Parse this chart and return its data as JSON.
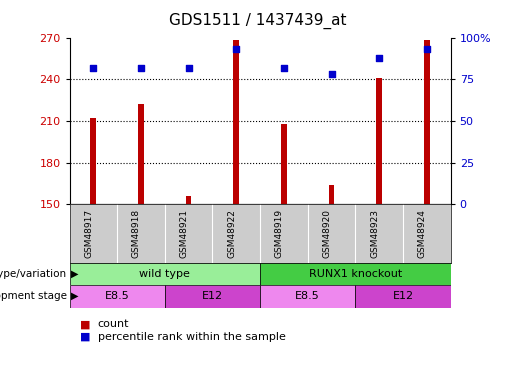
{
  "title": "GDS1511 / 1437439_at",
  "samples": [
    "GSM48917",
    "GSM48918",
    "GSM48921",
    "GSM48922",
    "GSM48919",
    "GSM48920",
    "GSM48923",
    "GSM48924"
  ],
  "counts": [
    212,
    222,
    156,
    268,
    208,
    164,
    241,
    268
  ],
  "percentiles": [
    82,
    82,
    82,
    93,
    82,
    78,
    88,
    93
  ],
  "ylim_left": [
    150,
    270
  ],
  "ylim_right": [
    0,
    100
  ],
  "yticks_left": [
    150,
    180,
    210,
    240,
    270
  ],
  "yticks_right": [
    0,
    25,
    50,
    75,
    100
  ],
  "bar_color": "#bb0000",
  "dot_color": "#0000cc",
  "grid_color": "#000000",
  "label_bg_color": "#cccccc",
  "genotype_groups": [
    {
      "label": "wild type",
      "start": 0,
      "end": 4,
      "color": "#99ee99"
    },
    {
      "label": "RUNX1 knockout",
      "start": 4,
      "end": 8,
      "color": "#44cc44"
    }
  ],
  "stage_groups": [
    {
      "label": "E8.5",
      "start": 0,
      "end": 2,
      "color": "#ee88ee"
    },
    {
      "label": "E12",
      "start": 2,
      "end": 4,
      "color": "#cc44cc"
    },
    {
      "label": "E8.5",
      "start": 4,
      "end": 6,
      "color": "#ee88ee"
    },
    {
      "label": "E12",
      "start": 6,
      "end": 8,
      "color": "#cc44cc"
    }
  ],
  "legend_items": [
    {
      "label": "count",
      "color": "#bb0000"
    },
    {
      "label": "percentile rank within the sample",
      "color": "#0000cc"
    }
  ],
  "left_label_color": "#cc0000",
  "right_label_color": "#0000cc",
  "tick_label_size": 8,
  "title_fontsize": 11,
  "bar_width": 0.12
}
